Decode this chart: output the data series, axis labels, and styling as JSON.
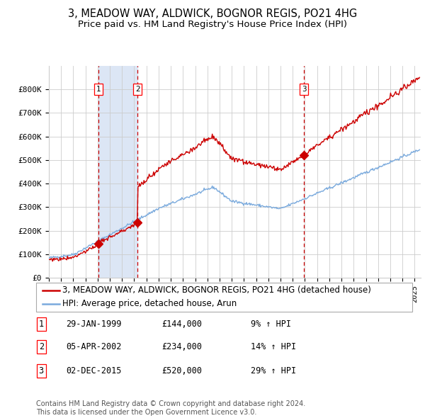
{
  "title": "3, MEADOW WAY, ALDWICK, BOGNOR REGIS, PO21 4HG",
  "subtitle": "Price paid vs. HM Land Registry's House Price Index (HPI)",
  "ylim": [
    0,
    900000
  ],
  "xlim_start": 1995.0,
  "xlim_end": 2025.5,
  "ytick_labels": [
    "£0",
    "£100K",
    "£200K",
    "£300K",
    "£400K",
    "£500K",
    "£600K",
    "£700K",
    "£800K"
  ],
  "ytick_values": [
    0,
    100000,
    200000,
    300000,
    400000,
    500000,
    600000,
    700000,
    800000
  ],
  "sale_dates": [
    1999.08,
    2002.27,
    2015.92
  ],
  "sale_prices": [
    144000,
    234000,
    520000
  ],
  "sale_labels": [
    "1",
    "2",
    "3"
  ],
  "shaded_region": [
    1999.08,
    2002.27
  ],
  "legend_line1": "3, MEADOW WAY, ALDWICK, BOGNOR REGIS, PO21 4HG (detached house)",
  "legend_line2": "HPI: Average price, detached house, Arun",
  "table_rows": [
    [
      "1",
      "29-JAN-1999",
      "£144,000",
      "9% ↑ HPI"
    ],
    [
      "2",
      "05-APR-2002",
      "£234,000",
      "14% ↑ HPI"
    ],
    [
      "3",
      "02-DEC-2015",
      "£520,000",
      "29% ↑ HPI"
    ]
  ],
  "footer": "Contains HM Land Registry data © Crown copyright and database right 2024.\nThis data is licensed under the Open Government Licence v3.0.",
  "hpi_color": "#7aaadd",
  "price_color": "#cc0000",
  "shaded_color": "#dce6f5",
  "grid_color": "#cccccc",
  "bg_color": "#ffffff",
  "title_fontsize": 10.5,
  "subtitle_fontsize": 9.5,
  "tick_fontsize": 8,
  "legend_fontsize": 8.5,
  "table_fontsize": 8.5,
  "footer_fontsize": 7
}
